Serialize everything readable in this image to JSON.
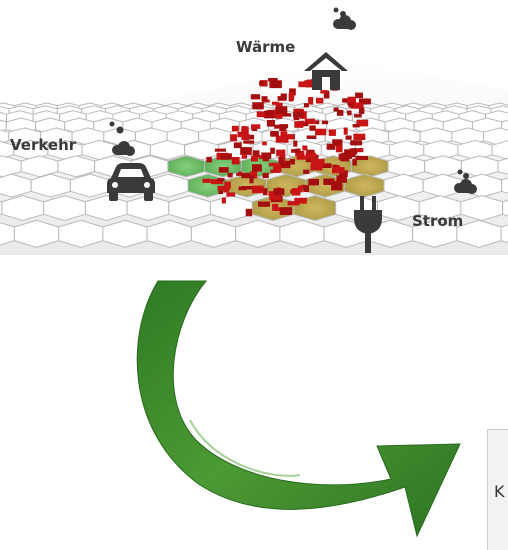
{
  "labels": {
    "heat": "Wärme",
    "traffic": "Verkehr",
    "power": "Strom"
  },
  "icons": [
    "house-icon",
    "car-icon",
    "plug-icon",
    "emission-cloud-icon"
  ],
  "panel_edge_text": "K",
  "colors": {
    "arrow": "#3f8c2a",
    "buildings": "#c81414",
    "hex_green": "#6cc46a",
    "hex_olive": "#b9a84f",
    "icon": "#3a3a3a"
  }
}
